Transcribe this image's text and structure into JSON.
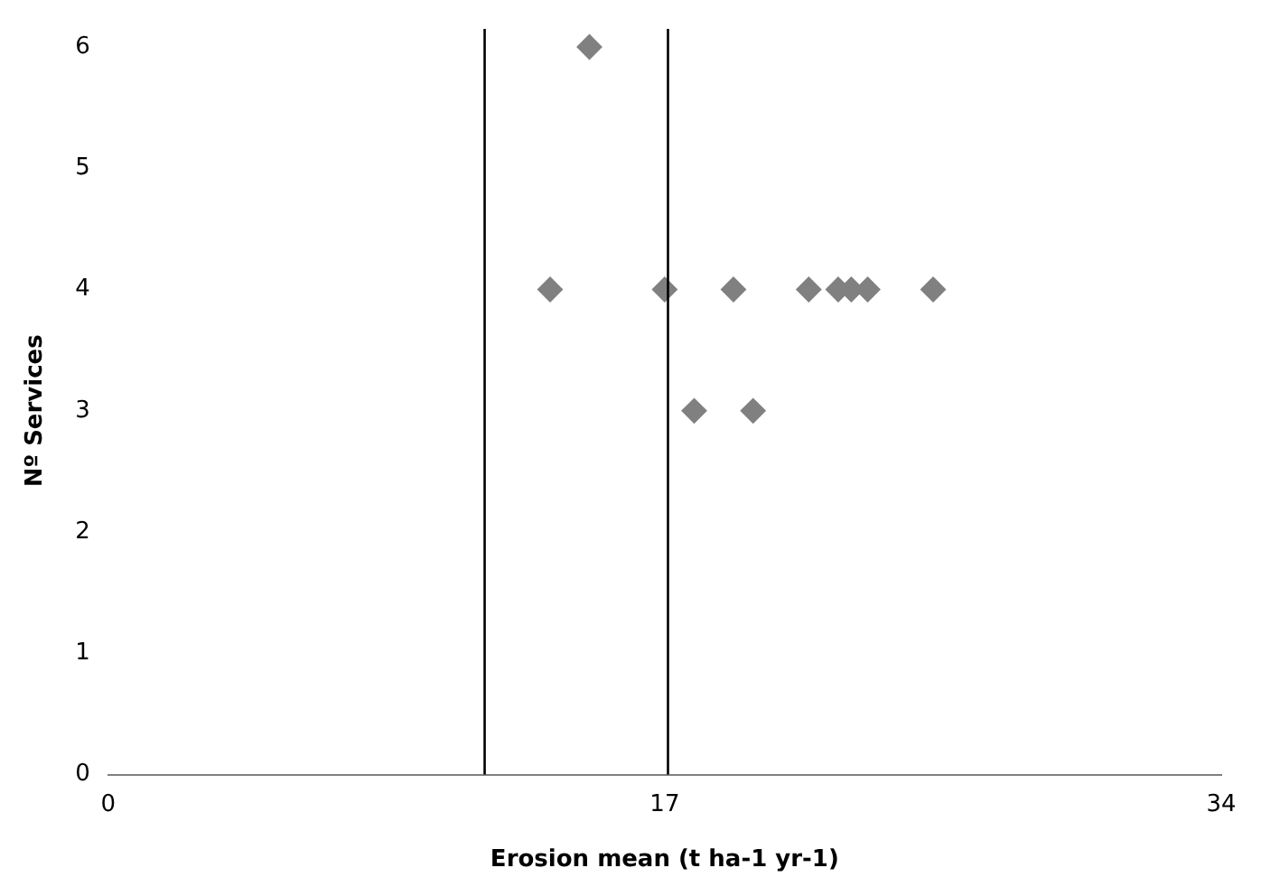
{
  "chart_data": {
    "type": "scatter",
    "xlabel": "Erosion mean (t ha-1 yr-1)",
    "ylabel": "Nº Services",
    "x": [
      14.7,
      13.5,
      17.0,
      19.1,
      21.4,
      22.3,
      22.7,
      23.2,
      25.2,
      17.9,
      19.7
    ],
    "series": [
      {
        "color": "#808080",
        "values": [
          6,
          4,
          4,
          4,
          4,
          4,
          4,
          4,
          4,
          3,
          3
        ]
      }
    ],
    "xlim": [
      0,
      34
    ],
    "xticks": [
      0,
      17,
      34
    ],
    "ylim": [
      0,
      6
    ],
    "yticks": [
      0,
      1,
      2,
      3,
      4,
      5,
      6
    ],
    "ref_lines": [
      {
        "axis": "x",
        "value": 11.5,
        "color": "#000000"
      },
      {
        "axis": "x",
        "value": 17.1,
        "color": "#000000"
      }
    ],
    "marker": "diamond",
    "grid": false,
    "legend": false
  }
}
